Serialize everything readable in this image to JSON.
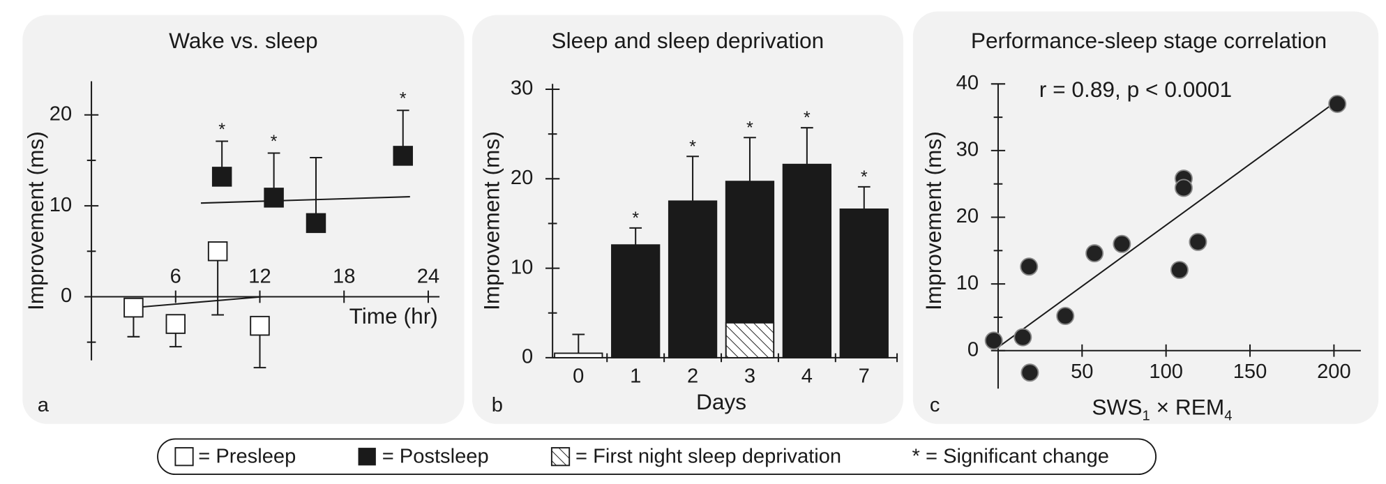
{
  "chart_data": [
    {
      "type": "scatter",
      "title": "Wake vs. sleep",
      "y_label": "Improvement (ms)",
      "x_label": "Time (hr)",
      "panel_label": "a",
      "xlim": [
        0,
        24.8
      ],
      "ylim": [
        -7,
        23.7
      ],
      "xticks": [
        6,
        12,
        18,
        24
      ],
      "yticks": [
        0,
        10,
        20
      ],
      "yminor": [
        -5,
        5,
        15
      ],
      "star_label": "*",
      "series": [
        {
          "name": "Presleep",
          "color": "#ffffff",
          "x": [
            3,
            6,
            9,
            12
          ],
          "values": [
            -1.2,
            -3.0,
            5.0,
            -3.2
          ],
          "errors": [
            3.2,
            2.5,
            7.0,
            4.6
          ],
          "error_direction": "down",
          "significant": [
            false,
            false,
            false,
            false
          ],
          "trend": {
            "x": [
              3,
              12.2
            ],
            "y": [
              -1.2,
              0
            ]
          }
        },
        {
          "name": "Postsleep",
          "color": "#1a1a1a",
          "x": [
            9.3,
            13,
            16,
            22.2
          ],
          "values": [
            13.2,
            10.9,
            8.1,
            15.5
          ],
          "errors": [
            3.9,
            4.9,
            7.2,
            5.0
          ],
          "error_direction": "up",
          "significant": [
            true,
            true,
            false,
            true
          ],
          "trend": {
            "x": [
              7.8,
              22.7
            ],
            "y": [
              10.3,
              11.0
            ]
          }
        }
      ]
    },
    {
      "type": "bar",
      "title": "Sleep and sleep deprivation",
      "y_label": "Improvement (ms)",
      "x_label": "Days",
      "panel_label": "b",
      "categories": [
        "0",
        "1",
        "2",
        "3",
        "4",
        "7"
      ],
      "ylim": [
        0,
        30.6
      ],
      "yticks": [
        0,
        10,
        20,
        30
      ],
      "yminor": [
        5,
        15,
        25
      ],
      "star_label": "*",
      "values": [
        0.5,
        12.6,
        17.5,
        19.7,
        21.6,
        16.6
      ],
      "errors": [
        2.1,
        1.9,
        5.0,
        4.9,
        4.1,
        2.5
      ],
      "colors": [
        "#ffffff",
        "#1a1a1a",
        "#1a1a1a",
        "#1a1a1a",
        "#1a1a1a",
        "#1a1a1a"
      ],
      "significant": [
        false,
        true,
        true,
        true,
        true,
        true
      ],
      "sleep_deprivation": {
        "category_index": 3,
        "value": 3.9,
        "error": 3.5
      }
    },
    {
      "type": "scatter",
      "title": "Performance-sleep stage correlation",
      "y_label": "Improvement (ms)",
      "panel_label": "c",
      "x_label_parts": [
        "SWS",
        "1",
        " × REM",
        "4"
      ],
      "annotation": "r = 0.89, p < 0.0001",
      "xlim": [
        -6,
        216
      ],
      "ylim": [
        -5.7,
        40
      ],
      "xticks": [
        50,
        100,
        150,
        200
      ],
      "yticks": [
        0,
        10,
        20,
        30,
        40
      ],
      "yminor": [
        5,
        15,
        25,
        35
      ],
      "color": "#222222",
      "x": [
        -2.6,
        14.7,
        18.4,
        18.9,
        40,
        57.4,
        73.7,
        108,
        110.5,
        110.5,
        119,
        202
      ],
      "values": [
        1.5,
        2.0,
        12.6,
        -3.3,
        5.2,
        14.6,
        16.0,
        12.1,
        25.8,
        24.4,
        16.3,
        37
      ],
      "trend": {
        "x": [
          0,
          202.6
        ],
        "y": [
          0.5,
          37.6
        ]
      }
    }
  ],
  "legend": [
    "= Presleep",
    "= Postsleep",
    "= First night sleep deprivation",
    "* = Significant change"
  ]
}
